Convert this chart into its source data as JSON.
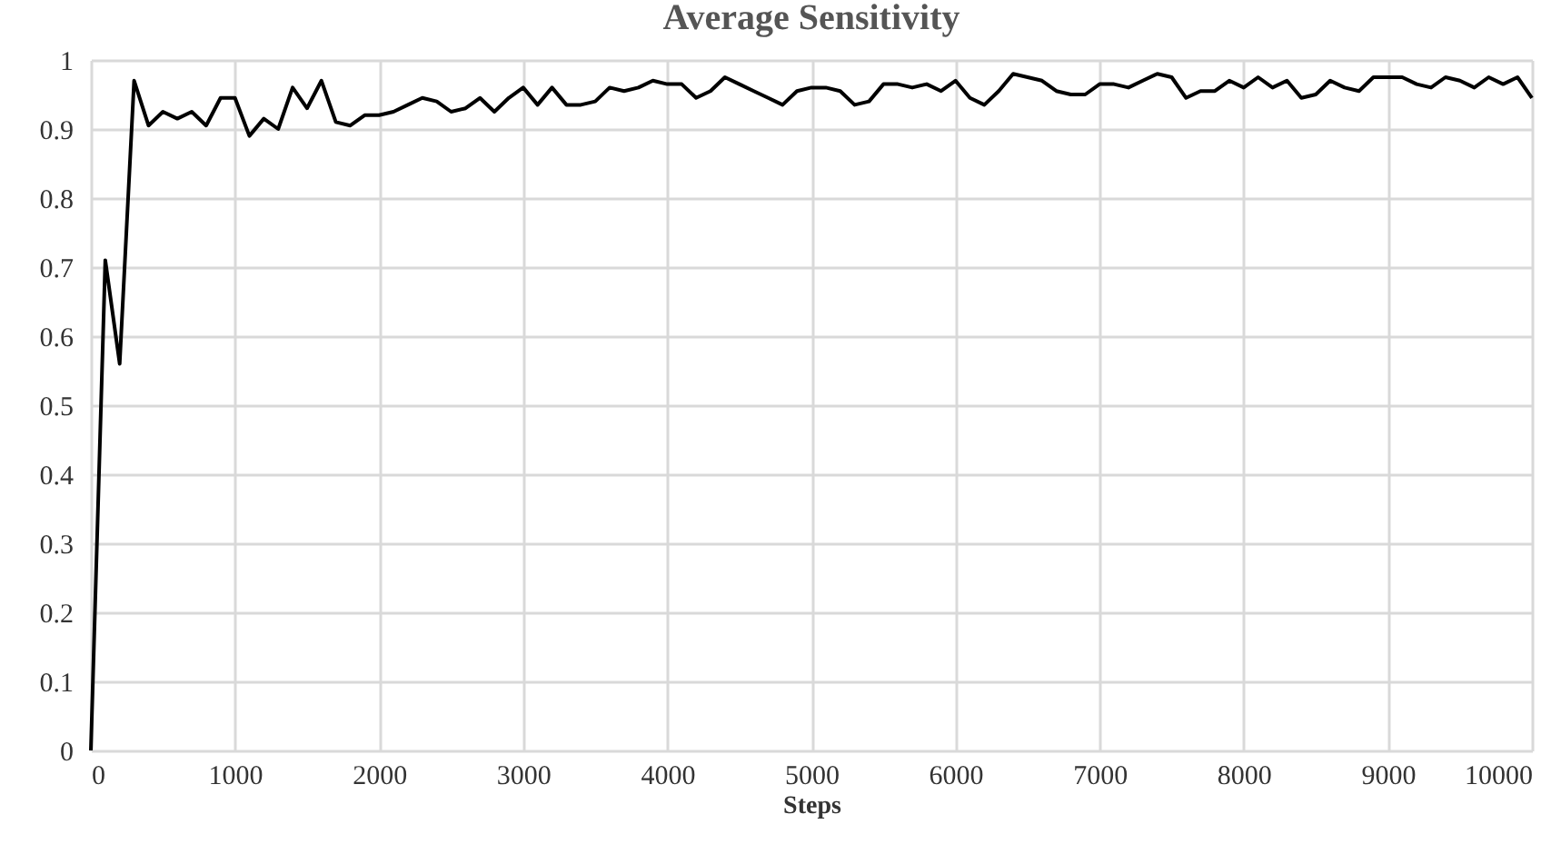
{
  "chart_data": {
    "type": "line",
    "title": "Average Sensitivity",
    "xlabel": "Steps",
    "x": [
      0,
      100,
      200,
      300,
      400,
      500,
      600,
      700,
      800,
      900,
      1000,
      1100,
      1200,
      1300,
      1400,
      1500,
      1600,
      1700,
      1800,
      1900,
      2000,
      2100,
      2200,
      2300,
      2400,
      2500,
      2600,
      2700,
      2800,
      2900,
      3000,
      3100,
      3200,
      3300,
      3400,
      3500,
      3600,
      3700,
      3800,
      3900,
      4000,
      4100,
      4200,
      4300,
      4400,
      4500,
      4600,
      4700,
      4800,
      4900,
      5000,
      5100,
      5200,
      5300,
      5400,
      5500,
      5600,
      5700,
      5800,
      5900,
      6000,
      6100,
      6200,
      6300,
      6400,
      6500,
      6600,
      6700,
      6800,
      6900,
      7000,
      7100,
      7200,
      7300,
      7400,
      7500,
      7600,
      7700,
      7800,
      7900,
      8000,
      8100,
      8200,
      8300,
      8400,
      8500,
      8600,
      8700,
      8800,
      8900,
      9000,
      9100,
      9200,
      9300,
      9400,
      9500,
      9600,
      9700,
      9800,
      9900,
      10000
    ],
    "series": [
      {
        "color": "#000000",
        "values": [
          0,
          0.71,
          0.56,
          0.97,
          0.905,
          0.925,
          0.915,
          0.925,
          0.905,
          0.945,
          0.945,
          0.89,
          0.915,
          0.9,
          0.96,
          0.93,
          0.97,
          0.91,
          0.905,
          0.92,
          0.92,
          0.925,
          0.935,
          0.945,
          0.94,
          0.925,
          0.93,
          0.945,
          0.925,
          0.945,
          0.96,
          0.935,
          0.96,
          0.935,
          0.935,
          0.94,
          0.96,
          0.955,
          0.96,
          0.97,
          0.965,
          0.965,
          0.945,
          0.955,
          0.975,
          0.965,
          0.955,
          0.945,
          0.935,
          0.955,
          0.96,
          0.96,
          0.955,
          0.935,
          0.94,
          0.965,
          0.965,
          0.96,
          0.965,
          0.955,
          0.97,
          0.945,
          0.935,
          0.955,
          0.98,
          0.975,
          0.97,
          0.955,
          0.95,
          0.95,
          0.965,
          0.965,
          0.96,
          0.97,
          0.98,
          0.975,
          0.945,
          0.955,
          0.955,
          0.97,
          0.96,
          0.975,
          0.96,
          0.97,
          0.945,
          0.95,
          0.97,
          0.96,
          0.955,
          0.975,
          0.975,
          0.975,
          0.965,
          0.96,
          0.975,
          0.97,
          0.96,
          0.975,
          0.965,
          0.975,
          0.945
        ]
      }
    ],
    "xlim": [
      0,
      10000
    ],
    "xticks": [
      0,
      1000,
      2000,
      3000,
      4000,
      5000,
      6000,
      7000,
      8000,
      9000,
      10000
    ],
    "ylim": [
      0,
      1
    ],
    "yticks": [
      0,
      0.1,
      0.2,
      0.3,
      0.4,
      0.5,
      0.6,
      0.7,
      0.8,
      0.9,
      1
    ],
    "grid": true,
    "line_style": "solid"
  }
}
